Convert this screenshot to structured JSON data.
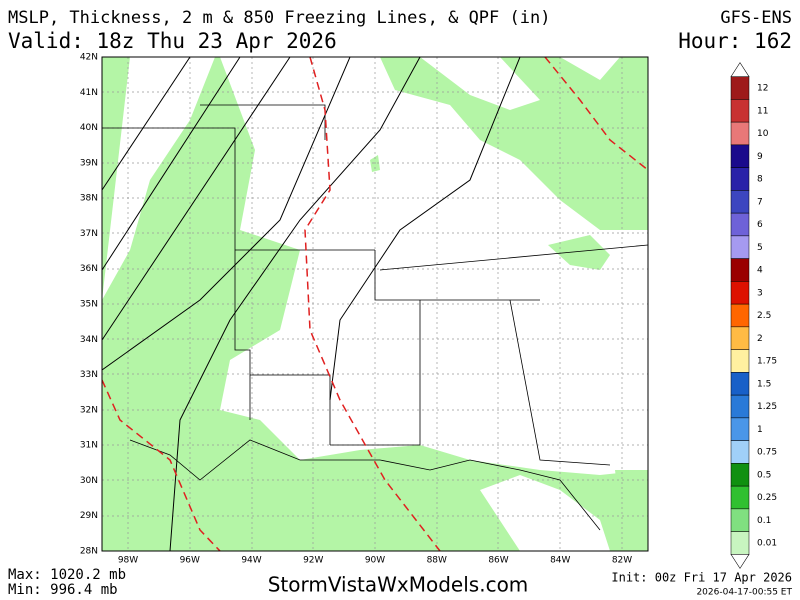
{
  "header": {
    "title": "MSLP, Thickness, 2 m & 850 Freezing Lines, & QPF (in)",
    "valid": "Valid: 18z Thu 23 Apr 2026",
    "model": "GFS-ENS",
    "hour": "Hour: 162"
  },
  "map": {
    "lat_labels": [
      "42N",
      "41N",
      "40N",
      "39N",
      "38N",
      "37N",
      "36N",
      "35N",
      "34N",
      "33N",
      "32N",
      "31N",
      "30N",
      "29N",
      "28N"
    ],
    "lon_labels": [
      "98W",
      "96W",
      "94W",
      "92W",
      "90W",
      "88W",
      "86W",
      "84W",
      "82W"
    ]
  },
  "colorbar": {
    "labels": [
      "12",
      "11",
      "10",
      "9",
      "8",
      "7",
      "6",
      "5",
      "4",
      "3",
      "2.5",
      "2",
      "1.75",
      "1.5",
      "1.25",
      "1",
      "0.75",
      "0.5",
      "0.25",
      "0.1",
      "0.01"
    ],
    "colors": [
      "#9e1a1a",
      "#c83232",
      "#e87878",
      "#1a0a8c",
      "#2a22a8",
      "#3c46c0",
      "#6e62d8",
      "#a59af0",
      "#9a0000",
      "#dd1100",
      "#ff6600",
      "#ffbb44",
      "#fff0a0",
      "#1860c8",
      "#2a7ad8",
      "#4a96e8",
      "#a0d0f8",
      "#109010",
      "#30c030",
      "#80e080",
      "#c8f5c0"
    ]
  },
  "footer": {
    "max": "Max: 1020.2 mb",
    "min": "Min: 996.4 mb",
    "site": "StormVistaWxModels.com",
    "init": "Init: 00z Fri 17 Apr 2026",
    "timestamp": "2026-04-17-00:55 ET"
  }
}
